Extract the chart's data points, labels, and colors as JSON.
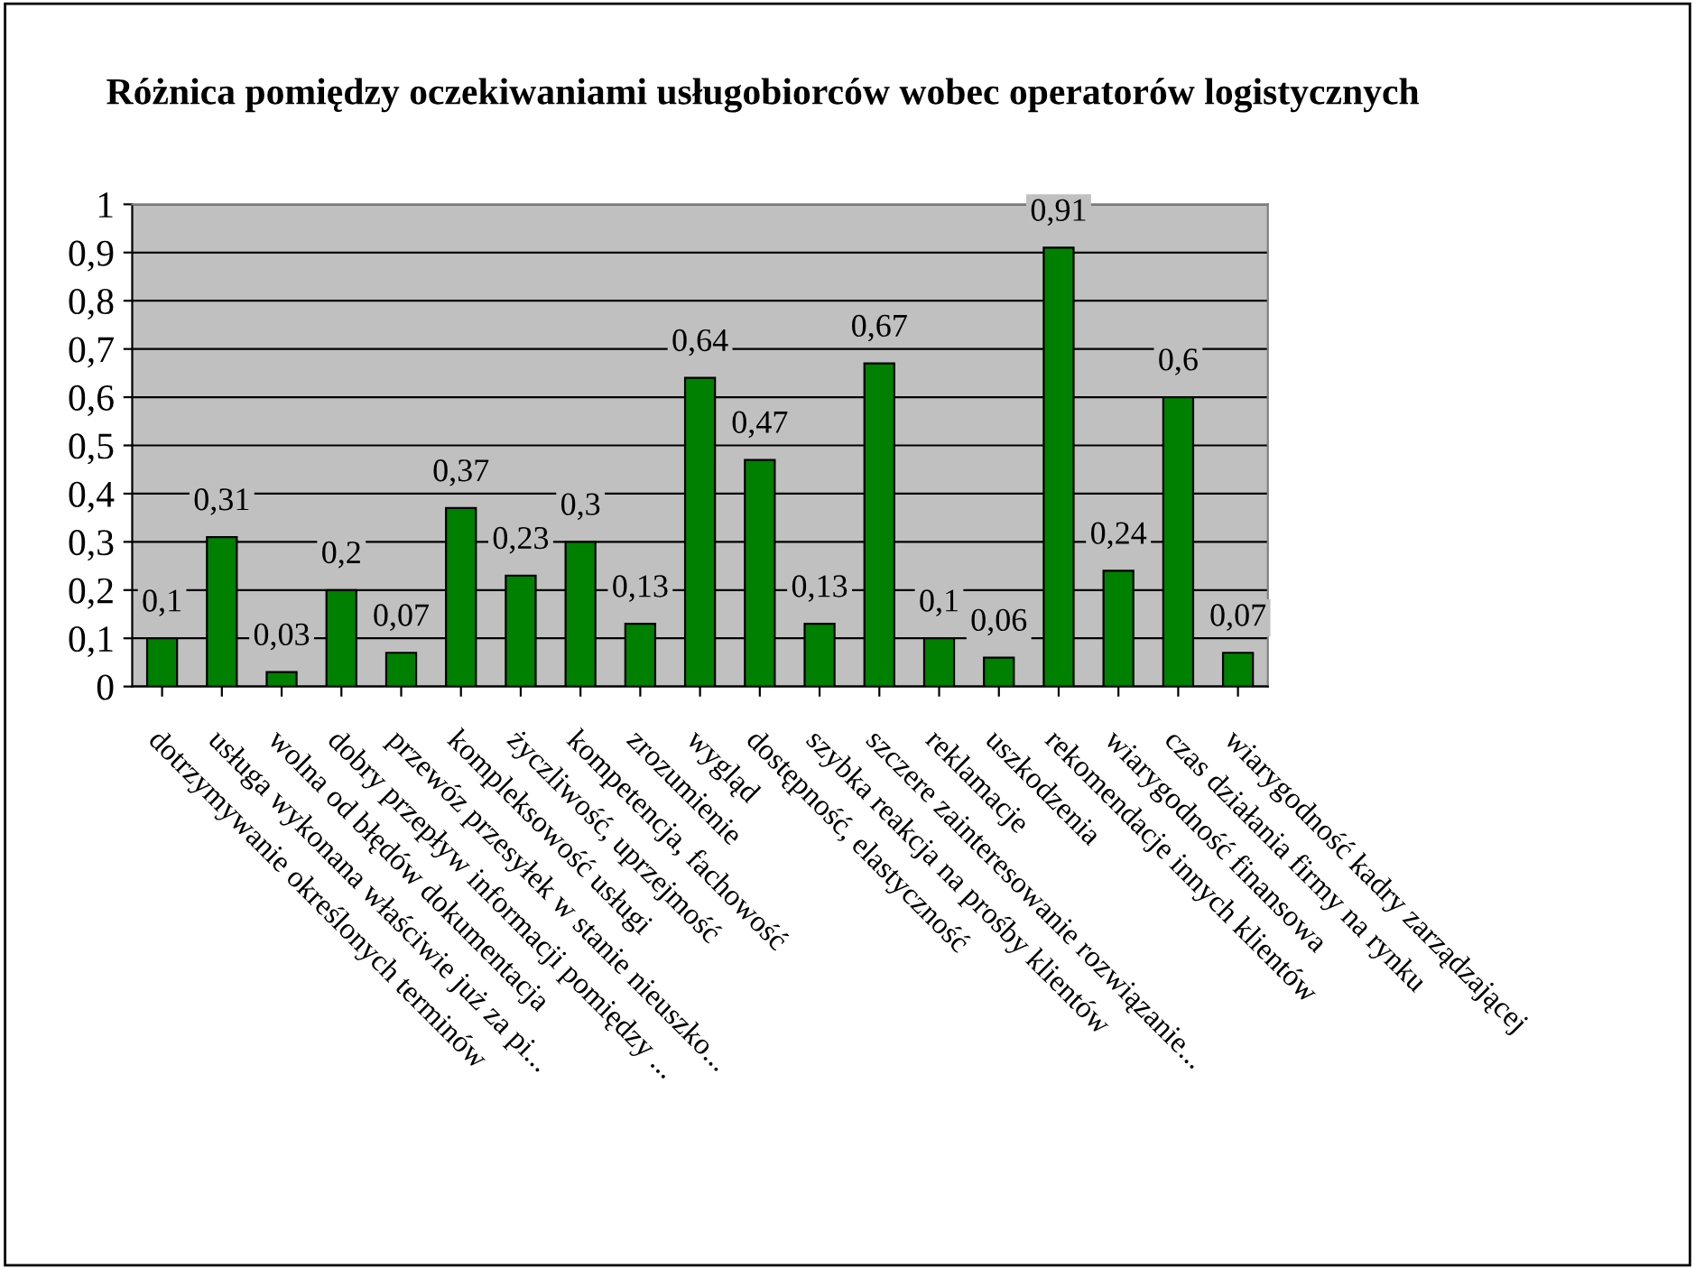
{
  "chart_data": {
    "type": "bar",
    "title": "Różnica pomiędzy oczekiwaniami usługobiorców wobec operatorów logistycznych",
    "categories": [
      "dotrzymywanie określonych terminów",
      "usługa wykonana właściwie już za pi...",
      "wolna od błędów dokumentacja",
      "dobry przepływ informacji pomiędzy ...",
      "przewóz przesyłek w stanie nieuszko...",
      "kompleksowość usługi",
      "życzliwość, uprzejmość",
      "kompetencja, fachowość",
      "zrozumienie",
      "wygląd",
      "dostępność, elastyczność",
      "szybka reakcja na prośby klientów",
      "szczere zainteresowanie rozwiązanie...",
      "reklamacje",
      "uszkodzenia",
      "rekomendacje innych klientów",
      "wiarygodność finansowa",
      "czas działania firmy na rynku",
      "wiarygodność kadry zarządzającej"
    ],
    "values": [
      0.1,
      0.31,
      0.03,
      0.2,
      0.07,
      0.37,
      0.23,
      0.3,
      0.13,
      0.64,
      0.47,
      0.13,
      0.67,
      0.1,
      0.06,
      0.91,
      0.24,
      0.6,
      0.07
    ],
    "value_labels": [
      "0,1",
      "0,31",
      "0,03",
      "0,2",
      "0,07",
      "0,37",
      "0,23",
      "0,3",
      "0,13",
      "0,64",
      "0,47",
      "0,13",
      "0,67",
      "0,1",
      "0,06",
      "0,91",
      "0,24",
      "0,6",
      "0,07"
    ],
    "color": "#008000",
    "ylim": [
      0,
      1
    ],
    "yticks": [
      0,
      {
        "value": 0.1,
        "label": "0,1"
      },
      {
        "value": 0.2,
        "label": "0,2"
      },
      {
        "value": 0.3,
        "label": "0,3"
      },
      {
        "value": 0.4,
        "label": "0,4"
      },
      {
        "value": 0.5,
        "label": "0,5"
      },
      {
        "value": 0.6,
        "label": "0,6"
      },
      {
        "value": 0.7,
        "label": "0,7"
      },
      {
        "value": 0.8,
        "label": "0,8"
      },
      {
        "value": 0.9,
        "label": "0,9"
      },
      1
    ],
    "grid": "y"
  }
}
